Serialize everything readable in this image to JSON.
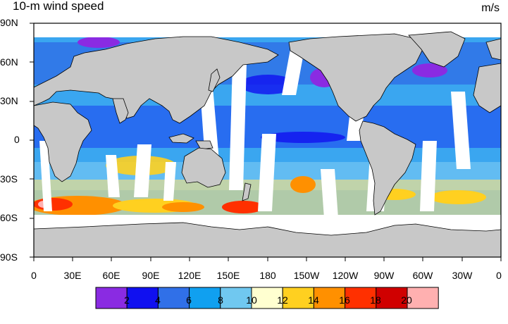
{
  "map": {
    "title": "10-m wind speed",
    "units": "m/s",
    "lat_labels": [
      "90N",
      "60N",
      "30N",
      "0",
      "30S",
      "60S",
      "90S"
    ],
    "lon_labels": [
      "0",
      "30E",
      "60E",
      "90E",
      "120E",
      "150E",
      "180",
      "150W",
      "120W",
      "90W",
      "60W",
      "30W",
      "0"
    ],
    "projection": "cylindrical-equidistant",
    "land_color": "#c8c8c8",
    "missing_data_color": "#ffffff",
    "features": [
      "satellite swath gaps",
      "strong winds Southern Ocean 40S-60S",
      "weak winds near equator"
    ]
  },
  "colorbar": {
    "tick_labels": [
      "2",
      "4",
      "6",
      "8",
      "10",
      "12",
      "14",
      "16",
      "18",
      "20"
    ],
    "colors": [
      "#8a2be2",
      "#1010f0",
      "#3070e8",
      "#10a0f0",
      "#70c8f0",
      "#ffffd0",
      "#ffd020",
      "#ff9000",
      "#ff3000",
      "#d00000",
      "#ffb0b0"
    ]
  }
}
